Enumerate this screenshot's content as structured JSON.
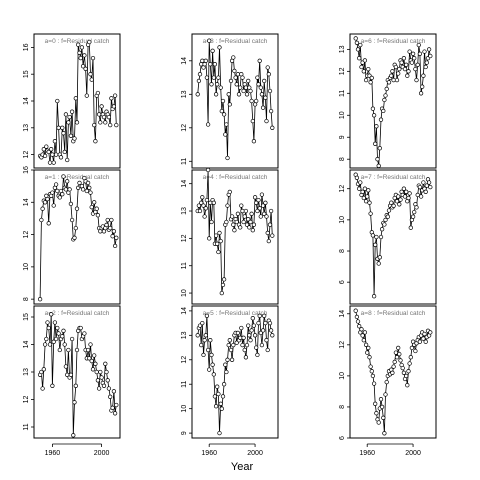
{
  "figure": {
    "xlabel": "Year"
  },
  "chart_data": [
    {
      "type": "line",
      "title": "a=0  :  f=Residual catch",
      "xlim": [
        1945,
        2015
      ],
      "ylim": [
        11.5,
        16.5
      ],
      "yticks": [
        12,
        13,
        14,
        15,
        16
      ],
      "x": [
        1950,
        1951,
        1952,
        1953,
        1954,
        1955,
        1956,
        1957,
        1958,
        1959,
        1960,
        1961,
        1962,
        1963,
        1964,
        1965,
        1966,
        1967,
        1968,
        1969,
        1970,
        1971,
        1972,
        1973,
        1974,
        1975,
        1976,
        1977,
        1978,
        1979,
        1980,
        1981,
        1982,
        1983,
        1984,
        1985,
        1986,
        1987,
        1988,
        1989,
        1990,
        1991,
        1992,
        1993,
        1994,
        1995,
        1996,
        1997,
        1998,
        1999,
        2000,
        2001,
        2002,
        2003,
        2004,
        2005,
        2006,
        2007,
        2008,
        2009,
        2010,
        2011,
        2012
      ],
      "y": [
        11.95,
        11.9,
        12.0,
        12.2,
        11.95,
        12.3,
        12.15,
        12.1,
        11.7,
        12.2,
        12.0,
        11.7,
        12.5,
        12.0,
        14.0,
        13.0,
        12.0,
        11.9,
        13.0,
        12.8,
        12.1,
        13.5,
        11.8,
        13.2,
        13.4,
        12.7,
        13.6,
        12.5,
        12.6,
        14.1,
        13.2,
        16.1,
        15.8,
        15.6,
        16.0,
        15.3,
        15.7,
        15.2,
        14.2,
        16.1,
        16.2,
        15.0,
        14.8,
        15.6,
        13.1,
        12.5,
        14.2,
        14.3,
        13.5,
        13.2,
        13.8,
        13.5,
        13.4,
        13.2,
        13.6,
        13.5,
        13.4,
        13.1,
        14.1,
        13.7,
        13.8,
        14.2,
        13.1
      ]
    },
    {
      "type": "line",
      "title": "a=1  :  f=Residual catch",
      "xlim": [
        1945,
        2015
      ],
      "ylim": [
        7.7,
        16.0
      ],
      "yticks": [
        8,
        10,
        12,
        14,
        16
      ],
      "x": [
        1950,
        1951,
        1952,
        1953,
        1954,
        1955,
        1956,
        1957,
        1958,
        1959,
        1960,
        1961,
        1962,
        1963,
        1964,
        1965,
        1966,
        1967,
        1968,
        1969,
        1970,
        1971,
        1972,
        1973,
        1974,
        1975,
        1976,
        1977,
        1978,
        1979,
        1980,
        1981,
        1982,
        1983,
        1984,
        1985,
        1986,
        1987,
        1988,
        1989,
        1990,
        1991,
        1992,
        1993,
        1994,
        1995,
        1996,
        1997,
        1998,
        1999,
        2000,
        2001,
        2002,
        2003,
        2004,
        2005,
        2006,
        2007,
        2008,
        2009,
        2010,
        2011,
        2012
      ],
      "y": [
        8.0,
        12.9,
        13.6,
        14.1,
        14.0,
        14.4,
        14.2,
        12.7,
        14.5,
        14.4,
        14.6,
        13.8,
        14.9,
        15.1,
        14.7,
        14.4,
        14.3,
        14.7,
        14.5,
        15.6,
        14.9,
        14.8,
        15.3,
        14.6,
        14.8,
        13.9,
        12.9,
        11.7,
        11.8,
        12.4,
        13.6,
        14.9,
        15.2,
        15.0,
        15.0,
        14.8,
        15.5,
        15.3,
        14.7,
        15.2,
        14.9,
        14.6,
        13.7,
        13.3,
        14.0,
        13.4,
        13.6,
        13.2,
        12.4,
        12.2,
        12.4,
        12.5,
        12.2,
        12.4,
        12.6,
        12.9,
        12.3,
        12.4,
        12.9,
        11.9,
        12.2,
        11.3,
        11.8
      ]
    },
    {
      "type": "line",
      "title": "a=2  :  f=Residual catch",
      "xlim": [
        1945,
        2015
      ],
      "ylim": [
        10.6,
        15.4
      ],
      "yticks": [
        11,
        12,
        13,
        14,
        15
      ],
      "x": [
        1950,
        1951,
        1952,
        1953,
        1954,
        1955,
        1956,
        1957,
        1958,
        1959,
        1960,
        1961,
        1962,
        1963,
        1964,
        1965,
        1966,
        1967,
        1968,
        1969,
        1970,
        1971,
        1972,
        1973,
        1974,
        1975,
        1976,
        1977,
        1978,
        1979,
        1980,
        1981,
        1982,
        1983,
        1984,
        1985,
        1986,
        1987,
        1988,
        1989,
        1990,
        1991,
        1992,
        1993,
        1994,
        1995,
        1996,
        1997,
        1998,
        1999,
        2000,
        2001,
        2002,
        2003,
        2004,
        2005,
        2006,
        2007,
        2008,
        2009,
        2010,
        2011,
        2012
      ],
      "y": [
        12.9,
        13.0,
        12.4,
        13.1,
        14.0,
        14.2,
        14.8,
        14.6,
        14.0,
        15.1,
        12.5,
        14.1,
        14.8,
        14.2,
        14.6,
        14.4,
        13.8,
        14.2,
        14.3,
        14.5,
        14.0,
        13.2,
        12.9,
        13.8,
        12.8,
        12.9,
        14.2,
        10.7,
        11.9,
        12.5,
        13.8,
        14.5,
        14.6,
        14.6,
        14.2,
        14.3,
        14.4,
        13.8,
        13.5,
        13.8,
        13.5,
        14.0,
        13.4,
        13.1,
        13.6,
        13.3,
        13.0,
        12.7,
        12.4,
        13.0,
        12.8,
        12.6,
        12.5,
        13.3,
        13.0,
        12.7,
        12.4,
        12.1,
        11.6,
        11.7,
        12.3,
        11.5,
        11.8
      ]
    },
    {
      "type": "line",
      "title": "a=3  :  f=Residual catch",
      "xlim": [
        1945,
        2020
      ],
      "ylim": [
        10.8,
        14.8
      ],
      "yticks": [
        11,
        12,
        13,
        14
      ],
      "x": [
        1950,
        1951,
        1952,
        1953,
        1954,
        1955,
        1956,
        1957,
        1958,
        1959,
        1960,
        1961,
        1962,
        1963,
        1964,
        1965,
        1966,
        1967,
        1968,
        1969,
        1970,
        1971,
        1972,
        1973,
        1974,
        1975,
        1976,
        1977,
        1978,
        1979,
        1980,
        1981,
        1982,
        1983,
        1984,
        1985,
        1986,
        1987,
        1988,
        1989,
        1990,
        1991,
        1992,
        1993,
        1994,
        1995,
        1996,
        1997,
        1998,
        1999,
        2000,
        2001,
        2002,
        2003,
        2004,
        2005,
        2006,
        2007,
        2008,
        2009,
        2010,
        2011,
        2012,
        2013,
        2014,
        2015
      ],
      "y": [
        13.0,
        13.4,
        13.6,
        13.9,
        14.0,
        13.8,
        13.9,
        14.0,
        13.5,
        12.1,
        14.6,
        13.9,
        13.3,
        14.3,
        13.5,
        13.9,
        13.0,
        13.3,
        13.5,
        14.4,
        13.2,
        12.5,
        12.8,
        12.4,
        11.8,
        12.1,
        11.1,
        13.0,
        12.7,
        13.4,
        14.0,
        14.1,
        13.7,
        13.5,
        13.3,
        13.6,
        13.0,
        13.2,
        13.6,
        13.5,
        13.1,
        13.3,
        13.2,
        13.0,
        13.4,
        13.2,
        13.1,
        12.8,
        12.2,
        11.6,
        12.7,
        12.8,
        13.5,
        13.3,
        14.0,
        13.2,
        13.0,
        12.6,
        13.4,
        12.9,
        12.2,
        13.8,
        13.6,
        13.1,
        12.5,
        12.0
      ]
    },
    {
      "type": "line",
      "title": "a=4  :  f=Residual catch",
      "xlim": [
        1945,
        2020
      ],
      "ylim": [
        9.6,
        14.5
      ],
      "yticks": [
        10,
        11,
        12,
        13,
        14
      ],
      "x": [
        1950,
        1951,
        1952,
        1953,
        1954,
        1955,
        1956,
        1957,
        1958,
        1959,
        1960,
        1961,
        1962,
        1963,
        1964,
        1965,
        1966,
        1967,
        1968,
        1969,
        1970,
        1971,
        1972,
        1973,
        1974,
        1975,
        1976,
        1977,
        1978,
        1979,
        1980,
        1981,
        1982,
        1983,
        1984,
        1985,
        1986,
        1987,
        1988,
        1989,
        1990,
        1991,
        1992,
        1993,
        1994,
        1995,
        1996,
        1997,
        1998,
        1999,
        2000,
        2001,
        2002,
        2003,
        2004,
        2005,
        2006,
        2007,
        2008,
        2009,
        2010,
        2011,
        2012,
        2013,
        2014,
        2015
      ],
      "y": [
        13.0,
        13.2,
        13.0,
        13.3,
        13.5,
        13.2,
        12.8,
        13.1,
        13.4,
        14.5,
        12.0,
        13.3,
        12.6,
        13.4,
        13.3,
        11.8,
        12.1,
        11.8,
        11.5,
        12.2,
        11.9,
        10.0,
        10.3,
        10.5,
        12.5,
        12.6,
        13.2,
        13.6,
        13.7,
        12.7,
        12.8,
        12.5,
        12.3,
        12.7,
        12.6,
        12.9,
        12.5,
        12.4,
        13.2,
        13.0,
        12.6,
        12.8,
        13.0,
        12.5,
        12.7,
        12.4,
        12.6,
        12.9,
        12.3,
        12.5,
        13.5,
        13.3,
        13.0,
        13.4,
        13.1,
        12.8,
        13.6,
        13.2,
        12.9,
        13.3,
        12.8,
        12.2,
        11.9,
        12.5,
        13.0,
        12.1
      ]
    },
    {
      "type": "line",
      "title": "a=5  :  f=Residual catch",
      "xlim": [
        1945,
        2020
      ],
      "ylim": [
        8.8,
        14.2
      ],
      "yticks": [
        9,
        10,
        11,
        12,
        13,
        14
      ],
      "x": [
        1950,
        1951,
        1952,
        1953,
        1954,
        1955,
        1956,
        1957,
        1958,
        1959,
        1960,
        1961,
        1962,
        1963,
        1964,
        1965,
        1966,
        1967,
        1968,
        1969,
        1970,
        1971,
        1972,
        1973,
        1974,
        1975,
        1976,
        1977,
        1978,
        1979,
        1980,
        1981,
        1982,
        1983,
        1984,
        1985,
        1986,
        1987,
        1988,
        1989,
        1990,
        1991,
        1992,
        1993,
        1994,
        1995,
        1996,
        1997,
        1998,
        1999,
        2000,
        2001,
        2002,
        2003,
        2004,
        2005,
        2006,
        2007,
        2008,
        2009,
        2010,
        2011,
        2012,
        2013,
        2014,
        2015
      ],
      "y": [
        13.0,
        13.3,
        13.4,
        12.6,
        13.5,
        12.2,
        12.8,
        13.0,
        13.8,
        12.4,
        11.6,
        12.8,
        12.2,
        11.8,
        11.4,
        10.5,
        10.1,
        10.9,
        10.6,
        9.0,
        10.2,
        10.0,
        10.5,
        11.0,
        11.8,
        11.5,
        12.0,
        12.6,
        12.8,
        12.4,
        12.0,
        12.6,
        13.0,
        13.1,
        12.7,
        13.1,
        12.8,
        12.9,
        13.3,
        12.6,
        12.9,
        12.4,
        12.1,
        12.6,
        13.4,
        13.0,
        12.8,
        13.2,
        13.7,
        13.4,
        13.0,
        12.5,
        12.2,
        13.5,
        13.8,
        13.1,
        12.6,
        13.2,
        13.8,
        13.5,
        12.8,
        12.4,
        13.6,
        13.5,
        13.2,
        13.0
      ]
    },
    {
      "type": "line",
      "title": "a=6  :  f=Residual catch",
      "xlim": [
        1945,
        2020
      ],
      "ylim": [
        7.6,
        13.7
      ],
      "yticks": [
        8,
        9,
        10,
        11,
        12,
        13
      ],
      "x": [
        1950,
        1951,
        1952,
        1953,
        1954,
        1955,
        1956,
        1957,
        1958,
        1959,
        1960,
        1961,
        1962,
        1963,
        1964,
        1965,
        1966,
        1967,
        1968,
        1969,
        1970,
        1971,
        1972,
        1973,
        1974,
        1975,
        1976,
        1977,
        1978,
        1979,
        1980,
        1981,
        1982,
        1983,
        1984,
        1985,
        1986,
        1987,
        1988,
        1989,
        1990,
        1991,
        1992,
        1993,
        1994,
        1995,
        1996,
        1997,
        1998,
        1999,
        2000,
        2001,
        2002,
        2003,
        2004,
        2005,
        2006,
        2007,
        2008,
        2009,
        2010,
        2011,
        2012,
        2013,
        2014,
        2015
      ],
      "y": [
        13.5,
        13.3,
        13.0,
        12.6,
        13.2,
        12.2,
        12.4,
        12.0,
        12.5,
        11.6,
        11.8,
        12.1,
        11.8,
        11.5,
        11.7,
        10.3,
        10.0,
        8.7,
        9.5,
        8.0,
        7.7,
        8.5,
        9.8,
        10.3,
        10.2,
        10.7,
        10.9,
        11.2,
        11.6,
        11.5,
        11.7,
        11.8,
        12.0,
        11.6,
        12.3,
        12.2,
        11.6,
        11.9,
        12.1,
        12.5,
        12.4,
        12.2,
        12.6,
        12.1,
        12.3,
        11.8,
        12.0,
        12.9,
        12.5,
        12.4,
        12.8,
        12.6,
        12.1,
        11.6,
        12.3,
        13.2,
        12.8,
        11.0,
        11.3,
        11.8,
        12.9,
        12.2,
        12.4,
        12.6,
        13.0,
        12.7
      ]
    },
    {
      "type": "line",
      "title": "a=7  :  f=Residual catch",
      "xlim": [
        1945,
        2020
      ],
      "ylim": [
        4.6,
        13.2
      ],
      "yticks": [
        6,
        8,
        10,
        12
      ],
      "x": [
        1950,
        1951,
        1952,
        1953,
        1954,
        1955,
        1956,
        1957,
        1958,
        1959,
        1960,
        1961,
        1962,
        1963,
        1964,
        1965,
        1966,
        1967,
        1968,
        1969,
        1970,
        1971,
        1972,
        1973,
        1974,
        1975,
        1976,
        1977,
        1978,
        1979,
        1980,
        1981,
        1982,
        1983,
        1984,
        1985,
        1986,
        1987,
        1988,
        1989,
        1990,
        1991,
        1992,
        1993,
        1994,
        1995,
        1996,
        1997,
        1998,
        1999,
        2000,
        2001,
        2002,
        2003,
        2004,
        2005,
        2006,
        2007,
        2008,
        2009,
        2010,
        2011,
        2012,
        2013,
        2014,
        2015
      ],
      "y": [
        12.9,
        12.7,
        12.3,
        12.0,
        12.4,
        11.6,
        11.8,
        11.4,
        12.0,
        11.2,
        11.5,
        11.9,
        11.1,
        10.4,
        9.2,
        9.0,
        5.1,
        8.4,
        8.9,
        7.5,
        7.2,
        7.6,
        8.9,
        9.4,
        9.8,
        9.7,
        10.0,
        10.3,
        10.2,
        10.6,
        10.9,
        11.1,
        10.8,
        10.9,
        11.4,
        11.6,
        11.2,
        11.5,
        11.0,
        11.3,
        11.8,
        11.6,
        12.0,
        11.5,
        11.8,
        11.2,
        11.4,
        11.7,
        9.5,
        10.0,
        10.2,
        10.5,
        11.0,
        10.8,
        11.6,
        12.2,
        12.1,
        11.5,
        11.9,
        12.4,
        12.0,
        11.8,
        12.2,
        12.6,
        12.4,
        12.1
      ]
    },
    {
      "type": "line",
      "title": "a=8  :  f=Residual catch",
      "xlim": [
        1945,
        2020
      ],
      "ylim": [
        6.0,
        14.5
      ],
      "yticks": [
        6,
        8,
        10,
        12,
        14
      ],
      "x": [
        1950,
        1951,
        1952,
        1953,
        1954,
        1955,
        1956,
        1957,
        1958,
        1959,
        1960,
        1961,
        1962,
        1963,
        1964,
        1965,
        1966,
        1967,
        1968,
        1969,
        1970,
        1971,
        1972,
        1973,
        1974,
        1975,
        1976,
        1977,
        1978,
        1979,
        1980,
        1981,
        1982,
        1983,
        1984,
        1985,
        1986,
        1987,
        1988,
        1989,
        1990,
        1991,
        1992,
        1993,
        1994,
        1995,
        1996,
        1997,
        1998,
        1999,
        2000,
        2001,
        2002,
        2003,
        2004,
        2005,
        2006,
        2007,
        2008,
        2009,
        2010,
        2011,
        2012,
        2013,
        2014,
        2015
      ],
      "y": [
        14.2,
        13.8,
        13.5,
        13.2,
        12.8,
        13.0,
        12.6,
        12.3,
        12.8,
        12.0,
        11.5,
        11.8,
        11.2,
        10.6,
        10.3,
        10.0,
        9.5,
        8.2,
        7.6,
        7.2,
        7.0,
        7.9,
        8.5,
        8.0,
        7.3,
        6.3,
        8.8,
        9.6,
        10.0,
        10.3,
        10.1,
        10.4,
        10.2,
        10.6,
        10.9,
        11.5,
        11.2,
        11.8,
        11.4,
        11.0,
        10.7,
        10.5,
        10.2,
        9.8,
        10.0,
        9.4,
        10.3,
        10.8,
        11.2,
        11.8,
        12.2,
        12.0,
        11.6,
        12.1,
        12.3,
        12.5,
        12.2,
        12.6,
        12.8,
        12.4,
        12.7,
        12.2,
        12.5,
        12.9,
        12.6,
        12.8
      ]
    }
  ]
}
